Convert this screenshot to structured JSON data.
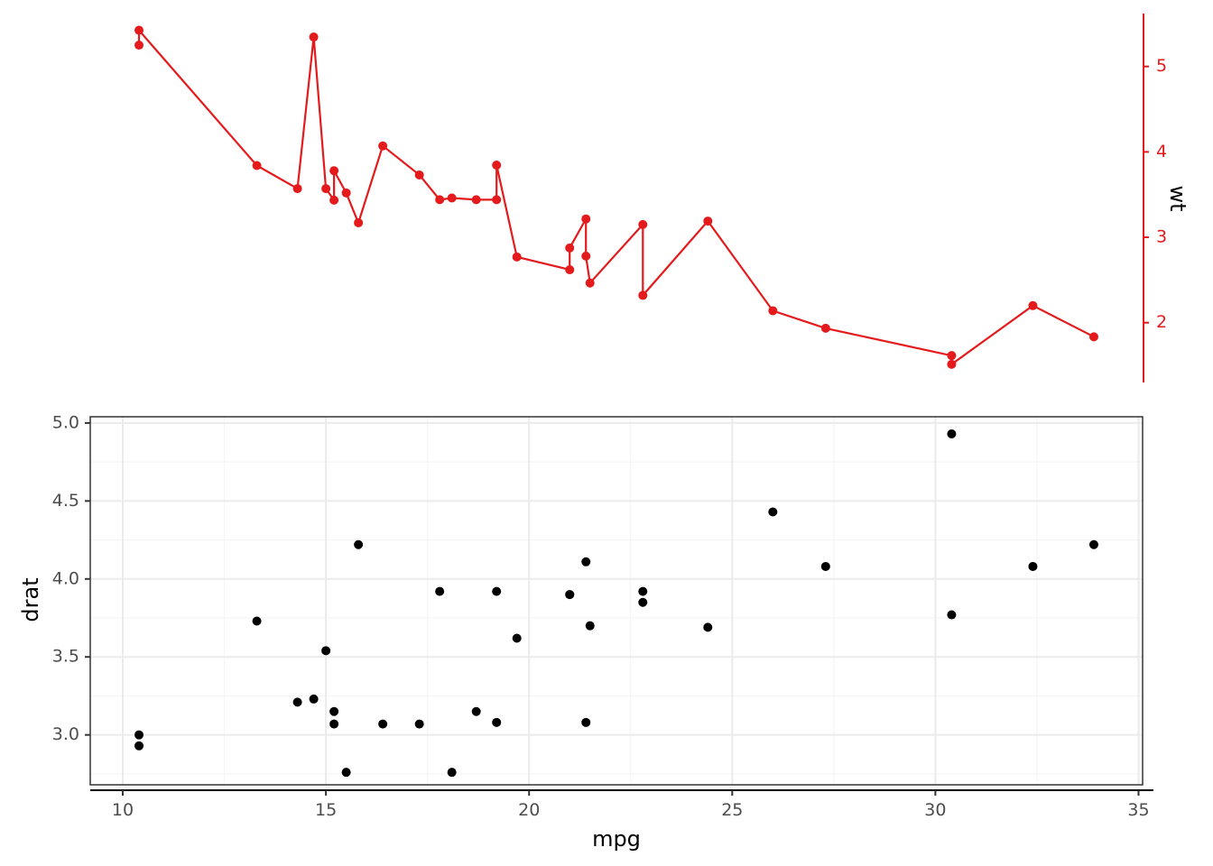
{
  "colors": {
    "line_series": "#e41a1c",
    "point_series": "#000000",
    "grid_major": "#ebebeb",
    "grid_minor": "#f5f5f5",
    "panel_border": "#333333",
    "tick_text": "#4d4d4d"
  },
  "chart_data": [
    {
      "type": "line",
      "position": "top",
      "axis_side": "right",
      "xlim": [
        9.2,
        35.1
      ],
      "ylim": [
        1.3,
        5.62
      ],
      "ylabel": "wt",
      "y_ticks": [
        "2",
        "3",
        "4",
        "5"
      ],
      "grid": false,
      "series": [
        {
          "x": [
            10.4,
            10.4,
            13.3,
            14.3,
            14.7,
            15.0,
            15.2,
            15.2,
            15.5,
            15.8,
            16.4,
            17.3,
            17.8,
            18.1,
            18.7,
            19.2,
            19.2,
            19.7,
            21.0,
            21.0,
            21.4,
            21.4,
            21.5,
            22.8,
            22.8,
            24.4,
            26.0,
            27.3,
            30.4,
            30.4,
            32.4,
            33.9
          ],
          "y": [
            5.25,
            5.424,
            3.84,
            3.57,
            5.345,
            3.57,
            3.435,
            3.78,
            3.52,
            3.17,
            4.07,
            3.73,
            3.44,
            3.46,
            3.44,
            3.44,
            3.845,
            2.77,
            2.62,
            2.875,
            3.215,
            2.78,
            2.465,
            3.15,
            2.32,
            3.19,
            2.14,
            1.935,
            1.615,
            1.513,
            2.2,
            1.835
          ]
        }
      ]
    },
    {
      "type": "scatter",
      "position": "bottom",
      "xlabel": "mpg",
      "ylabel": "drat",
      "xlim": [
        9.2,
        35.1
      ],
      "ylim": [
        2.68,
        5.04
      ],
      "x_ticks": [
        "10",
        "15",
        "20",
        "25",
        "30",
        "35"
      ],
      "y_ticks": [
        "3.0",
        "3.5",
        "4.0",
        "4.5",
        "5.0"
      ],
      "grid": true,
      "series": [
        {
          "x": [
            21.0,
            21.0,
            22.8,
            21.4,
            18.7,
            18.1,
            14.3,
            24.4,
            22.8,
            19.2,
            17.8,
            16.4,
            17.3,
            15.2,
            10.4,
            10.4,
            14.7,
            32.4,
            30.4,
            33.9,
            21.5,
            15.5,
            15.2,
            13.3,
            19.2,
            27.3,
            26.0,
            30.4,
            15.8,
            19.7,
            15.0,
            21.4
          ],
          "y": [
            3.9,
            3.9,
            3.85,
            3.08,
            3.15,
            2.76,
            3.21,
            3.69,
            3.92,
            3.92,
            3.92,
            3.07,
            3.07,
            3.07,
            2.93,
            3.0,
            3.23,
            4.08,
            4.93,
            4.22,
            3.7,
            2.76,
            3.15,
            3.73,
            3.08,
            4.08,
            4.43,
            3.77,
            4.22,
            3.62,
            3.54,
            4.11
          ]
        }
      ]
    }
  ]
}
